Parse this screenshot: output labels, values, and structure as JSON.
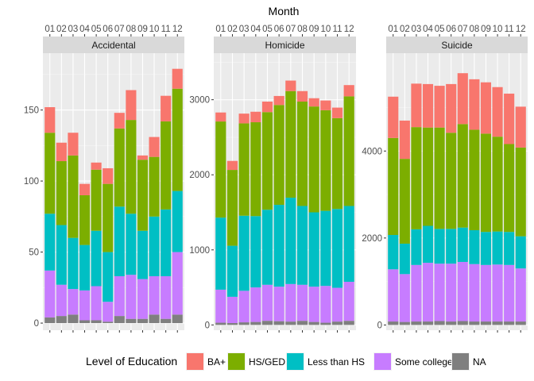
{
  "chart_data": {
    "type": "bar",
    "stacked": true,
    "x_axis_title": "Month",
    "legend": {
      "title": "Level of Education",
      "position": "bottom",
      "entries": [
        {
          "key": "BA+",
          "label": "BA+",
          "color": "#F8766D"
        },
        {
          "key": "HS/GED",
          "label": "HS/GED",
          "color": "#7CAE00"
        },
        {
          "key": "Less than HS",
          "label": "Less than HS",
          "color": "#00BFC4"
        },
        {
          "key": "Some college",
          "label": "Some college",
          "color": "#C77CFF"
        },
        {
          "key": "NA",
          "label": "NA",
          "color": "#7F7F7F"
        }
      ]
    },
    "stack_order_bottom_to_top": [
      "NA",
      "Some college",
      "Less than HS",
      "HS/GED",
      "BA+"
    ],
    "months": [
      "01",
      "02",
      "03",
      "04",
      "05",
      "06",
      "07",
      "08",
      "09",
      "10",
      "11",
      "12"
    ],
    "facets": [
      {
        "title": "Accidental",
        "ylim": [
          -5,
          190
        ],
        "yticks": [
          0,
          50,
          100,
          150
        ],
        "series": {
          "NA": [
            4,
            5,
            6,
            2,
            2,
            1,
            5,
            3,
            3,
            6,
            3,
            6
          ],
          "Some college": [
            33,
            22,
            18,
            21,
            24,
            14,
            28,
            31,
            28,
            27,
            30,
            44
          ],
          "Less than HS": [
            40,
            42,
            36,
            32,
            39,
            35,
            49,
            43,
            34,
            42,
            47,
            43
          ],
          "HS/GED": [
            57,
            45,
            58,
            35,
            43,
            48,
            55,
            66,
            50,
            42,
            62,
            72
          ],
          "BA+": [
            18,
            13,
            16,
            8,
            5,
            11,
            11,
            21,
            3,
            14,
            18,
            14
          ]
        }
      },
      {
        "title": "Homicide",
        "ylim": [
          -70,
          3620
        ],
        "yticks": [
          0,
          1000,
          2000,
          3000
        ],
        "series": {
          "NA": [
            30,
            25,
            35,
            40,
            55,
            50,
            45,
            55,
            40,
            30,
            45,
            55
          ],
          "Some college": [
            440,
            350,
            420,
            460,
            480,
            460,
            500,
            480,
            470,
            490,
            450,
            520
          ],
          "Less than HS": [
            960,
            680,
            1000,
            950,
            1000,
            1090,
            1150,
            1050,
            990,
            1000,
            1050,
            1010
          ],
          "HS/GED": [
            1280,
            1010,
            1230,
            1250,
            1300,
            1330,
            1420,
            1390,
            1410,
            1340,
            1210,
            1460
          ],
          "BA+": [
            120,
            120,
            130,
            140,
            140,
            120,
            140,
            140,
            110,
            130,
            140,
            150
          ]
        }
      },
      {
        "title": "Suicide",
        "ylim": [
          -120,
          6250
        ],
        "yticks": [
          0,
          2000,
          4000
        ],
        "series": {
          "NA": [
            80,
            70,
            80,
            80,
            90,
            80,
            90,
            80,
            80,
            80,
            80,
            80
          ],
          "Some college": [
            1200,
            1100,
            1300,
            1350,
            1320,
            1330,
            1360,
            1320,
            1300,
            1310,
            1300,
            1220
          ],
          "Less than HS": [
            790,
            700,
            820,
            850,
            800,
            800,
            790,
            780,
            760,
            760,
            760,
            740
          ],
          "HS/GED": [
            2230,
            1950,
            2350,
            2260,
            2330,
            2210,
            2380,
            2310,
            2260,
            2180,
            2020,
            2040
          ],
          "BA+": [
            950,
            880,
            1000,
            1000,
            960,
            1120,
            1170,
            1160,
            1180,
            1140,
            1160,
            940
          ]
        }
      }
    ]
  }
}
